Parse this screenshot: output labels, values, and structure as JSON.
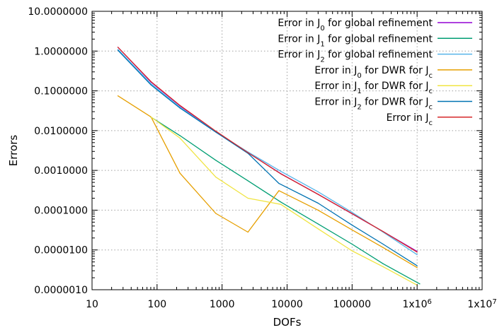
{
  "chart_data": {
    "type": "line",
    "title": "",
    "xlabel": "DOFs",
    "ylabel": "Errors",
    "xscale": "log",
    "yscale": "log",
    "xlim": [
      10,
      10000000
    ],
    "ylim": [
      1e-06,
      10
    ],
    "grid": true,
    "legend_position": "top-right",
    "x_tick_labels": [
      "10",
      "100",
      "1000",
      "10000",
      "100000",
      "1x10^6",
      "1x10^7"
    ],
    "y_tick_labels": [
      "0.0000010",
      "0.0000100",
      "0.0001000",
      "0.0010000",
      "0.0100000",
      "0.1000000",
      "1.0000000",
      "10.0000000"
    ],
    "series": [
      {
        "name": "Error in J_0 for global refinement",
        "label": {
          "pre": "Error in J",
          "sub": "0",
          "post": " for global refinement"
        },
        "color": "#9400d3",
        "x": [
          25,
          81,
          225,
          800,
          2500,
          8000,
          30000,
          100000,
          300000,
          1000000
        ],
        "y": [
          1.25,
          0.165,
          0.042,
          0.0095,
          0.0028,
          0.00083,
          0.00025,
          8.1e-05,
          2.9e-05,
          9.2e-06
        ]
      },
      {
        "name": "Error in J_1 for global refinement",
        "label": {
          "pre": "Error in J",
          "sub": "1",
          "post": " for global refinement"
        },
        "color": "#009e73",
        "x": [
          80,
          225,
          800,
          2500,
          8000,
          30000,
          100000,
          300000,
          1100000
        ],
        "y": [
          0.022,
          0.0075,
          0.0018,
          0.00055,
          0.00016,
          4.5e-05,
          1.4e-05,
          4.5e-06,
          1.4e-06
        ]
      },
      {
        "name": "Error in J_2 for global refinement",
        "label": {
          "pre": "Error in J",
          "sub": "2",
          "post": " for global refinement"
        },
        "color": "#56b4e9",
        "x": [
          25,
          81,
          225,
          800,
          2500,
          8000,
          30000,
          100000,
          300000,
          1000000
        ],
        "y": [
          1.1,
          0.15,
          0.039,
          0.0092,
          0.0029,
          0.00095,
          0.00029,
          8.8e-05,
          2.8e-05,
          7.6e-06
        ]
      },
      {
        "name": "Error in J_0 for DWR for J_c",
        "label": {
          "pre": "Error in J",
          "sub": "0",
          "post": " for DWR for J",
          "sub2": "c"
        },
        "color": "#e69f00",
        "x": [
          25,
          81,
          225,
          800,
          2500,
          7500,
          30000,
          100000,
          300000,
          1000000
        ],
        "y": [
          0.075,
          0.022,
          0.00085,
          8.3e-05,
          2.8e-05,
          0.00031,
          0.0001,
          3.2e-05,
          1.15e-05,
          3.6e-06
        ]
      },
      {
        "name": "Error in J_1 for DWR for J_c",
        "label": {
          "pre": "Error in J",
          "sub": "1",
          "post": " for DWR for J",
          "sub2": "c"
        },
        "color": "#f0e442",
        "x": [
          81,
          225,
          800,
          2500,
          8000,
          30000,
          100000,
          300000,
          1000000
        ],
        "y": [
          0.022,
          0.0065,
          0.00068,
          0.0002,
          0.00014,
          3.4e-05,
          9.5e-06,
          3.8e-06,
          1.3e-06
        ]
      },
      {
        "name": "Error in J_2 for DWR for J_c",
        "label": {
          "pre": "Error in J",
          "sub": "2",
          "post": " for DWR for J",
          "sub2": "c"
        },
        "color": "#0072b2",
        "x": [
          25,
          81,
          225,
          800,
          2500,
          7500,
          30000,
          100000,
          300000,
          1000000
        ],
        "y": [
          1.05,
          0.14,
          0.037,
          0.0092,
          0.0027,
          0.00047,
          0.00015,
          4.2e-05,
          1.4e-05,
          4e-06
        ]
      },
      {
        "name": "Error in J_c",
        "label": {
          "pre": "Error in J",
          "sub": "c",
          "post": ""
        },
        "color": "#d62728",
        "x": [
          25,
          81,
          225,
          800,
          2500,
          8000,
          30000,
          100000,
          300000,
          1000000
        ],
        "y": [
          1.25,
          0.17,
          0.043,
          0.0097,
          0.0028,
          0.00082,
          0.00025,
          8.2e-05,
          2.9e-05,
          8.8e-06
        ]
      }
    ]
  }
}
